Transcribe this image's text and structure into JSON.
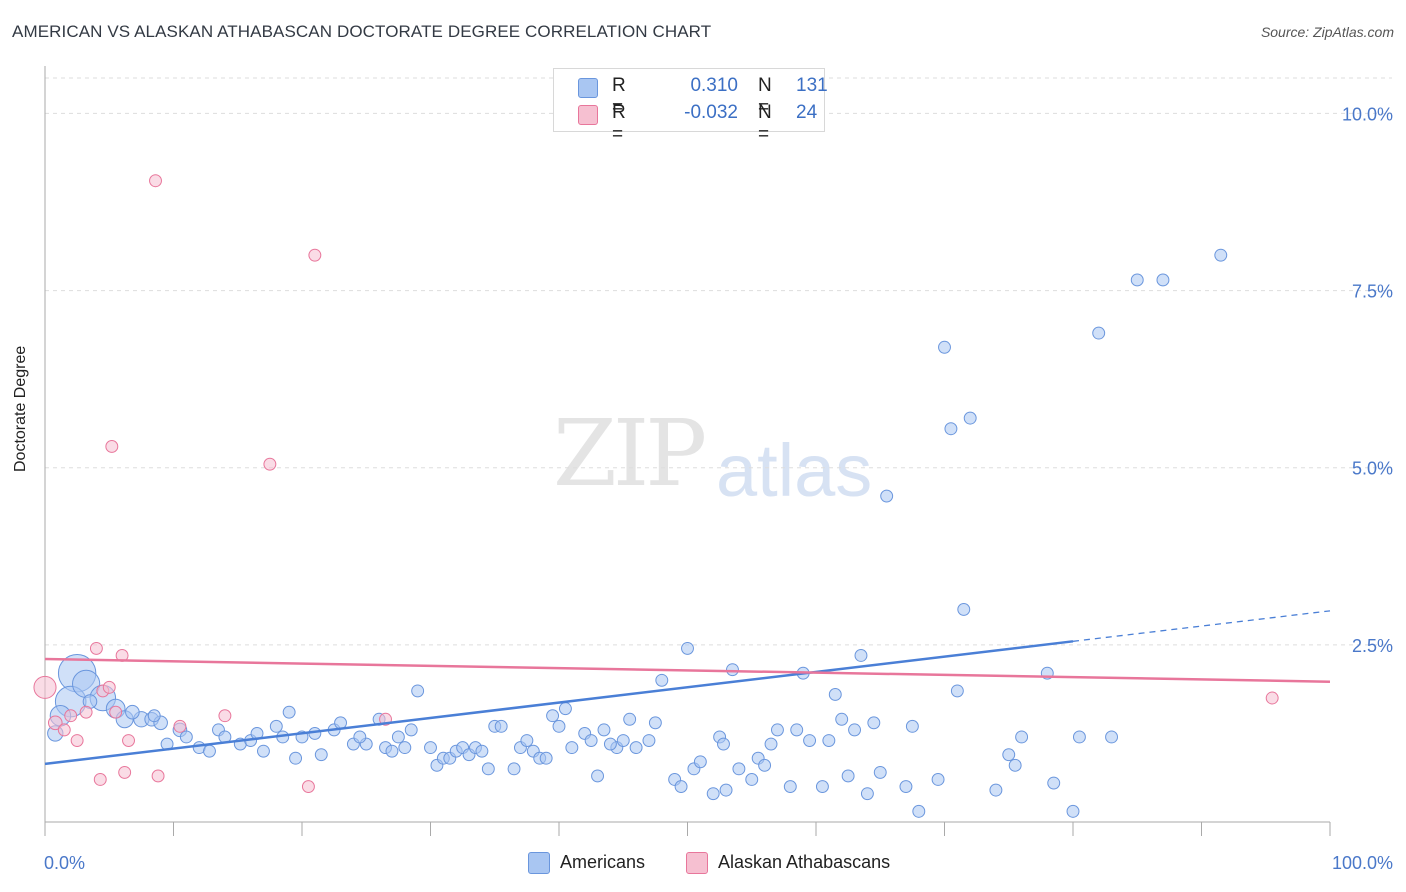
{
  "title": "AMERICAN VS ALASKAN ATHABASCAN DOCTORATE DEGREE CORRELATION CHART",
  "source": "Source: ZipAtlas.com",
  "watermark": {
    "zip": "ZIP",
    "atlas": "atlas"
  },
  "colors": {
    "blue": "#4a7fd6",
    "blue_fill": "#a9c6f2",
    "pink": "#e8769b",
    "pink_fill": "#f6b9cc",
    "grid": "#dddddd",
    "axis_text": "#4a78c9"
  },
  "legend": {
    "r_label": "R =",
    "n_label": "N =",
    "rows": [
      {
        "r": "0.310",
        "n": "131",
        "color": "#a9c6f2",
        "border": "#6a96dd"
      },
      {
        "r": "-0.032",
        "n": "24",
        "color": "#f6c0d1",
        "border": "#e8769b"
      }
    ]
  },
  "bottom_legend": [
    "Americans",
    "Alaskan Athabascans"
  ],
  "chart_data": {
    "type": "scatter",
    "title": "AMERICAN VS ALASKAN ATHABASCAN DOCTORATE DEGREE CORRELATION CHART",
    "xlabel": "",
    "ylabel": "Doctorate Degree",
    "xlim": [
      0,
      100
    ],
    "ylim": [
      0,
      10.5
    ],
    "x_tick_labels": [
      "0.0%",
      "100.0%"
    ],
    "y_ticks": [
      2.5,
      5.0,
      7.5,
      10.0
    ],
    "y_tick_labels": [
      "2.5%",
      "5.0%",
      "7.5%",
      "10.0%"
    ],
    "grid": true,
    "series": [
      {
        "name": "Americans",
        "r": 0.31,
        "n": 131,
        "trend": {
          "x0": 0,
          "y0": 0.82,
          "x1": 80,
          "y1": 2.55,
          "dash_to_x": 100,
          "dash_to_y": 2.98
        },
        "points": [
          [
            2.5,
            2.1,
            2.2
          ],
          [
            2.0,
            1.7,
            1.8
          ],
          [
            3.2,
            1.95,
            1.6
          ],
          [
            4.5,
            1.75,
            1.5
          ],
          [
            1.2,
            1.5,
            1.2
          ],
          [
            5.5,
            1.6,
            1.1
          ],
          [
            6.2,
            1.45,
            1.0
          ],
          [
            7.5,
            1.45,
            0.9
          ],
          [
            8.3,
            1.45,
            0.8
          ],
          [
            9.0,
            1.4,
            0.8
          ],
          [
            0.8,
            1.25,
            0.9
          ],
          [
            8.5,
            1.5,
            0.7
          ],
          [
            10.5,
            1.3,
            0.8
          ],
          [
            11.0,
            1.2,
            0.7
          ],
          [
            12.0,
            1.05,
            0.7
          ],
          [
            13.5,
            1.3,
            0.7
          ],
          [
            14.0,
            1.2,
            0.7
          ],
          [
            15.2,
            1.1,
            0.7
          ],
          [
            16.0,
            1.15,
            0.7
          ],
          [
            17.0,
            1.0,
            0.7
          ],
          [
            18.0,
            1.35,
            0.7
          ],
          [
            18.5,
            1.2,
            0.7
          ],
          [
            19.0,
            1.55,
            0.7
          ],
          [
            20.0,
            1.2,
            0.7
          ],
          [
            21.0,
            1.25,
            0.7
          ],
          [
            21.5,
            0.95,
            0.7
          ],
          [
            22.5,
            1.3,
            0.7
          ],
          [
            23.0,
            1.4,
            0.7
          ],
          [
            24.0,
            1.1,
            0.7
          ],
          [
            25.0,
            1.1,
            0.7
          ],
          [
            26.0,
            1.45,
            0.7
          ],
          [
            26.5,
            1.05,
            0.7
          ],
          [
            27.0,
            1.0,
            0.7
          ],
          [
            27.5,
            1.2,
            0.7
          ],
          [
            28.0,
            1.05,
            0.7
          ],
          [
            28.5,
            1.3,
            0.7
          ],
          [
            29.0,
            1.85,
            0.7
          ],
          [
            30.0,
            1.05,
            0.7
          ],
          [
            30.5,
            0.8,
            0.7
          ],
          [
            31.0,
            0.9,
            0.7
          ],
          [
            31.5,
            0.9,
            0.7
          ],
          [
            32.0,
            1.0,
            0.7
          ],
          [
            32.5,
            1.05,
            0.7
          ],
          [
            33.0,
            0.95,
            0.7
          ],
          [
            33.5,
            1.05,
            0.7
          ],
          [
            34.5,
            0.75,
            0.7
          ],
          [
            35.0,
            1.35,
            0.7
          ],
          [
            35.5,
            1.35,
            0.7
          ],
          [
            36.5,
            0.75,
            0.7
          ],
          [
            37.0,
            1.05,
            0.7
          ],
          [
            37.5,
            1.15,
            0.7
          ],
          [
            38.0,
            1.0,
            0.7
          ],
          [
            38.5,
            0.9,
            0.7
          ],
          [
            39.5,
            1.5,
            0.7
          ],
          [
            40.0,
            1.35,
            0.7
          ],
          [
            40.5,
            1.6,
            0.7
          ],
          [
            41.0,
            1.05,
            0.7
          ],
          [
            42.0,
            1.25,
            0.7
          ],
          [
            42.5,
            1.15,
            0.7
          ],
          [
            43.5,
            1.3,
            0.7
          ],
          [
            43.0,
            0.65,
            0.7
          ],
          [
            44.5,
            1.05,
            0.7
          ],
          [
            45.0,
            1.15,
            0.7
          ],
          [
            45.5,
            1.45,
            0.7
          ],
          [
            46.0,
            1.05,
            0.7
          ],
          [
            47.0,
            1.15,
            0.7
          ],
          [
            47.5,
            1.4,
            0.7
          ],
          [
            48.0,
            2.0,
            0.7
          ],
          [
            49.0,
            0.6,
            0.7
          ],
          [
            49.5,
            0.5,
            0.7
          ],
          [
            50.0,
            2.45,
            0.7
          ],
          [
            50.5,
            0.75,
            0.7
          ],
          [
            51.0,
            0.85,
            0.7
          ],
          [
            52.0,
            0.4,
            0.7
          ],
          [
            52.5,
            1.2,
            0.7
          ],
          [
            53.0,
            0.45,
            0.7
          ],
          [
            53.5,
            2.15,
            0.7
          ],
          [
            54.0,
            0.75,
            0.7
          ],
          [
            55.0,
            0.6,
            0.7
          ],
          [
            55.5,
            0.9,
            0.7
          ],
          [
            56.0,
            0.8,
            0.7
          ],
          [
            56.5,
            1.1,
            0.7
          ],
          [
            57.0,
            1.3,
            0.7
          ],
          [
            58.0,
            0.5,
            0.7
          ],
          [
            58.5,
            1.3,
            0.7
          ],
          [
            59.0,
            2.1,
            0.7
          ],
          [
            59.5,
            1.15,
            0.7
          ],
          [
            60.5,
            0.5,
            0.7
          ],
          [
            61.0,
            1.15,
            0.7
          ],
          [
            61.5,
            1.8,
            0.7
          ],
          [
            62.0,
            1.45,
            0.7
          ],
          [
            62.5,
            0.65,
            0.7
          ],
          [
            63.0,
            1.3,
            0.7
          ],
          [
            63.5,
            2.35,
            0.7
          ],
          [
            64.0,
            0.4,
            0.7
          ],
          [
            64.5,
            1.4,
            0.7
          ],
          [
            65.0,
            0.7,
            0.7
          ],
          [
            65.5,
            4.6,
            0.7
          ],
          [
            67.0,
            0.5,
            0.7
          ],
          [
            67.5,
            1.35,
            0.7
          ],
          [
            68.0,
            0.15,
            0.7
          ],
          [
            69.5,
            0.6,
            0.7
          ],
          [
            70.0,
            6.7,
            0.7
          ],
          [
            70.5,
            5.55,
            0.7
          ],
          [
            71.0,
            1.85,
            0.7
          ],
          [
            71.5,
            3.0,
            0.7
          ],
          [
            72.0,
            5.7,
            0.7
          ],
          [
            74.0,
            0.45,
            0.7
          ],
          [
            75.0,
            0.95,
            0.7
          ],
          [
            75.5,
            0.8,
            0.7
          ],
          [
            76.0,
            1.2,
            0.7
          ],
          [
            78.0,
            2.1,
            0.7
          ],
          [
            78.5,
            0.55,
            0.7
          ],
          [
            80.0,
            0.15,
            0.7
          ],
          [
            80.5,
            1.2,
            0.7
          ],
          [
            82.0,
            6.9,
            0.7
          ],
          [
            83.0,
            1.2,
            0.7
          ],
          [
            85.0,
            7.65,
            0.7
          ],
          [
            87.0,
            7.65,
            0.7
          ],
          [
            91.5,
            8.0,
            0.7
          ],
          [
            3.5,
            1.7,
            0.8
          ],
          [
            6.8,
            1.55,
            0.8
          ],
          [
            9.5,
            1.1,
            0.7
          ],
          [
            12.8,
            1.0,
            0.7
          ],
          [
            16.5,
            1.25,
            0.7
          ],
          [
            19.5,
            0.9,
            0.7
          ],
          [
            24.5,
            1.2,
            0.7
          ],
          [
            34.0,
            1.0,
            0.7
          ],
          [
            39.0,
            0.9,
            0.7
          ],
          [
            44.0,
            1.1,
            0.7
          ],
          [
            52.8,
            1.1,
            0.7
          ]
        ]
      },
      {
        "name": "Alaskan Athabascans",
        "r": -0.032,
        "n": 24,
        "trend": {
          "x0": 0,
          "y0": 2.3,
          "x1": 100,
          "y1": 1.98
        },
        "points": [
          [
            0.0,
            1.9,
            1.3
          ],
          [
            0.8,
            1.4,
            0.8
          ],
          [
            1.5,
            1.3,
            0.7
          ],
          [
            2.0,
            1.5,
            0.7
          ],
          [
            2.5,
            1.15,
            0.7
          ],
          [
            3.2,
            1.55,
            0.7
          ],
          [
            4.0,
            2.45,
            0.7
          ],
          [
            4.3,
            0.6,
            0.7
          ],
          [
            4.5,
            1.85,
            0.7
          ],
          [
            5.0,
            1.9,
            0.7
          ],
          [
            5.5,
            1.55,
            0.7
          ],
          [
            5.2,
            5.3,
            0.7
          ],
          [
            6.0,
            2.35,
            0.7
          ],
          [
            6.2,
            0.7,
            0.7
          ],
          [
            6.5,
            1.15,
            0.7
          ],
          [
            8.6,
            9.05,
            0.7
          ],
          [
            8.8,
            0.65,
            0.7
          ],
          [
            10.5,
            1.35,
            0.7
          ],
          [
            14.0,
            1.5,
            0.7
          ],
          [
            17.5,
            5.05,
            0.7
          ],
          [
            20.5,
            0.5,
            0.7
          ],
          [
            21.0,
            8.0,
            0.7
          ],
          [
            26.5,
            1.45,
            0.7
          ],
          [
            95.5,
            1.75,
            0.7
          ]
        ]
      }
    ]
  }
}
